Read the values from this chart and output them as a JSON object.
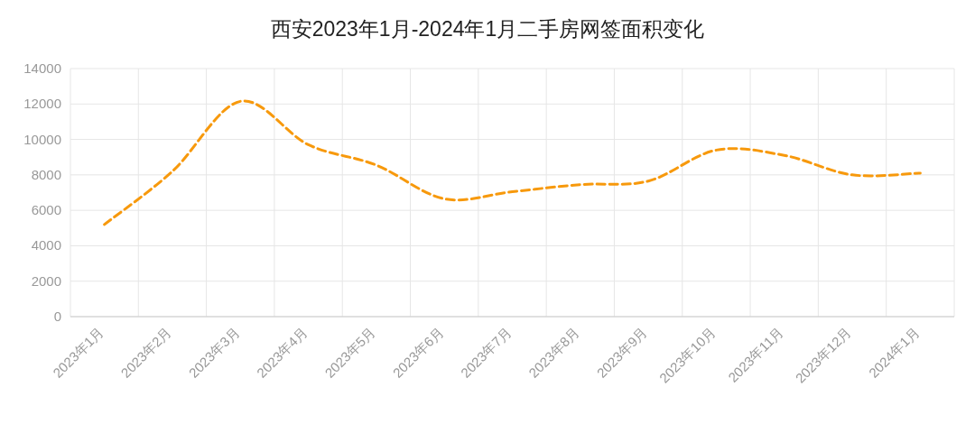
{
  "chart_data": {
    "type": "line",
    "title": "西安2023年1月-2024年1月二手房网签面积变化",
    "categories": [
      "2023年1月",
      "2023年2月",
      "2023年3月",
      "2023年4月",
      "2023年5月",
      "2023年6月",
      "2023年7月",
      "2023年8月",
      "2023年9月",
      "2023年10月",
      "2023年11月",
      "2023年12月",
      "2024年1月"
    ],
    "series": [
      {
        "color": "#f7990c",
        "values": [
          5200,
          8200,
          12150,
          9700,
          8550,
          6650,
          7050,
          7450,
          7650,
          9400,
          9100,
          8000,
          8100
        ]
      }
    ],
    "ylim": [
      0,
      14000
    ],
    "yticks": [
      0,
      2000,
      4000,
      6000,
      8000,
      10000,
      12000,
      14000
    ],
    "grid": true,
    "line_style": "dashed"
  }
}
